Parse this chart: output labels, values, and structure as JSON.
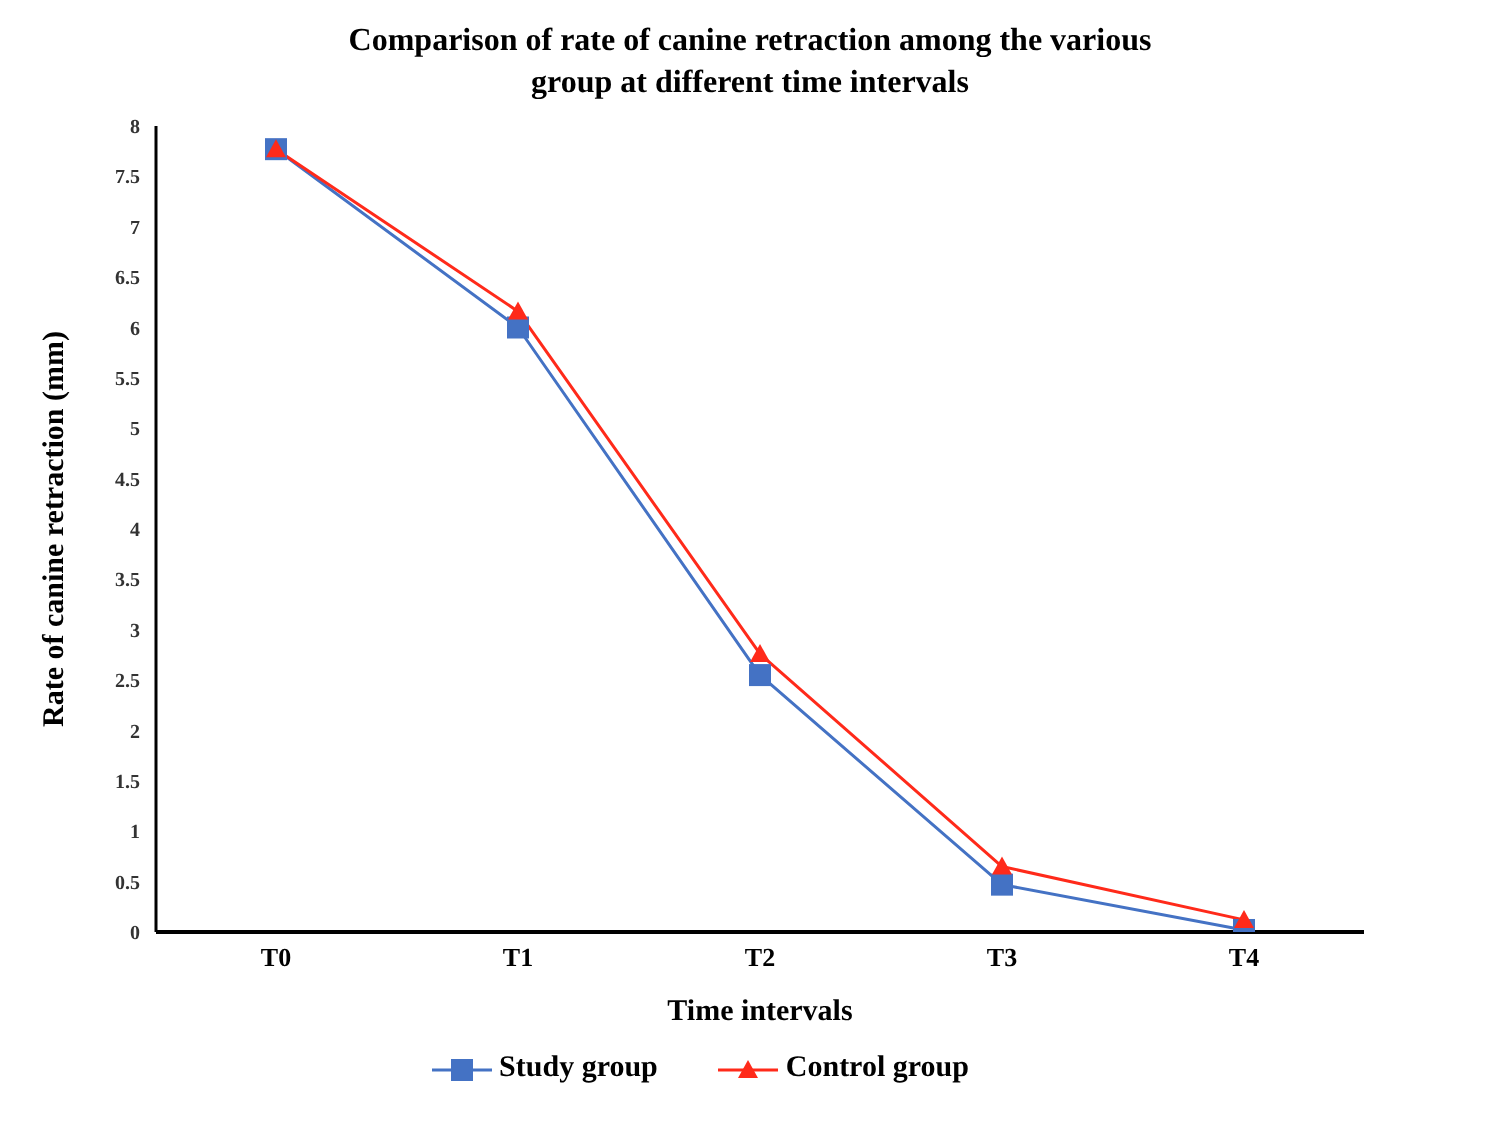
{
  "chart_data": {
    "type": "line",
    "title": "Comparison of rate of canine retraction among the various group at different time intervals",
    "xlabel": "Time intervals",
    "ylabel": "Rate of canine retraction (mm)",
    "categories": [
      "T0",
      "T1",
      "T2",
      "T3",
      "T4"
    ],
    "series": [
      {
        "name": "Study group",
        "color": "#4472c4",
        "marker": "square",
        "values": [
          7.77,
          6.0,
          2.55,
          0.47,
          0.02
        ]
      },
      {
        "name": "Control group",
        "color": "#ff2a1a",
        "marker": "triangle",
        "values": [
          7.77,
          6.16,
          2.76,
          0.65,
          0.12
        ]
      }
    ],
    "ylim": [
      0,
      8
    ],
    "yticks": [
      0,
      0.5,
      1,
      1.5,
      2,
      2.5,
      3,
      3.5,
      4,
      4.5,
      5,
      5.5,
      6,
      6.5,
      7,
      7.5,
      8
    ],
    "grid": false,
    "legend": "bottom"
  }
}
